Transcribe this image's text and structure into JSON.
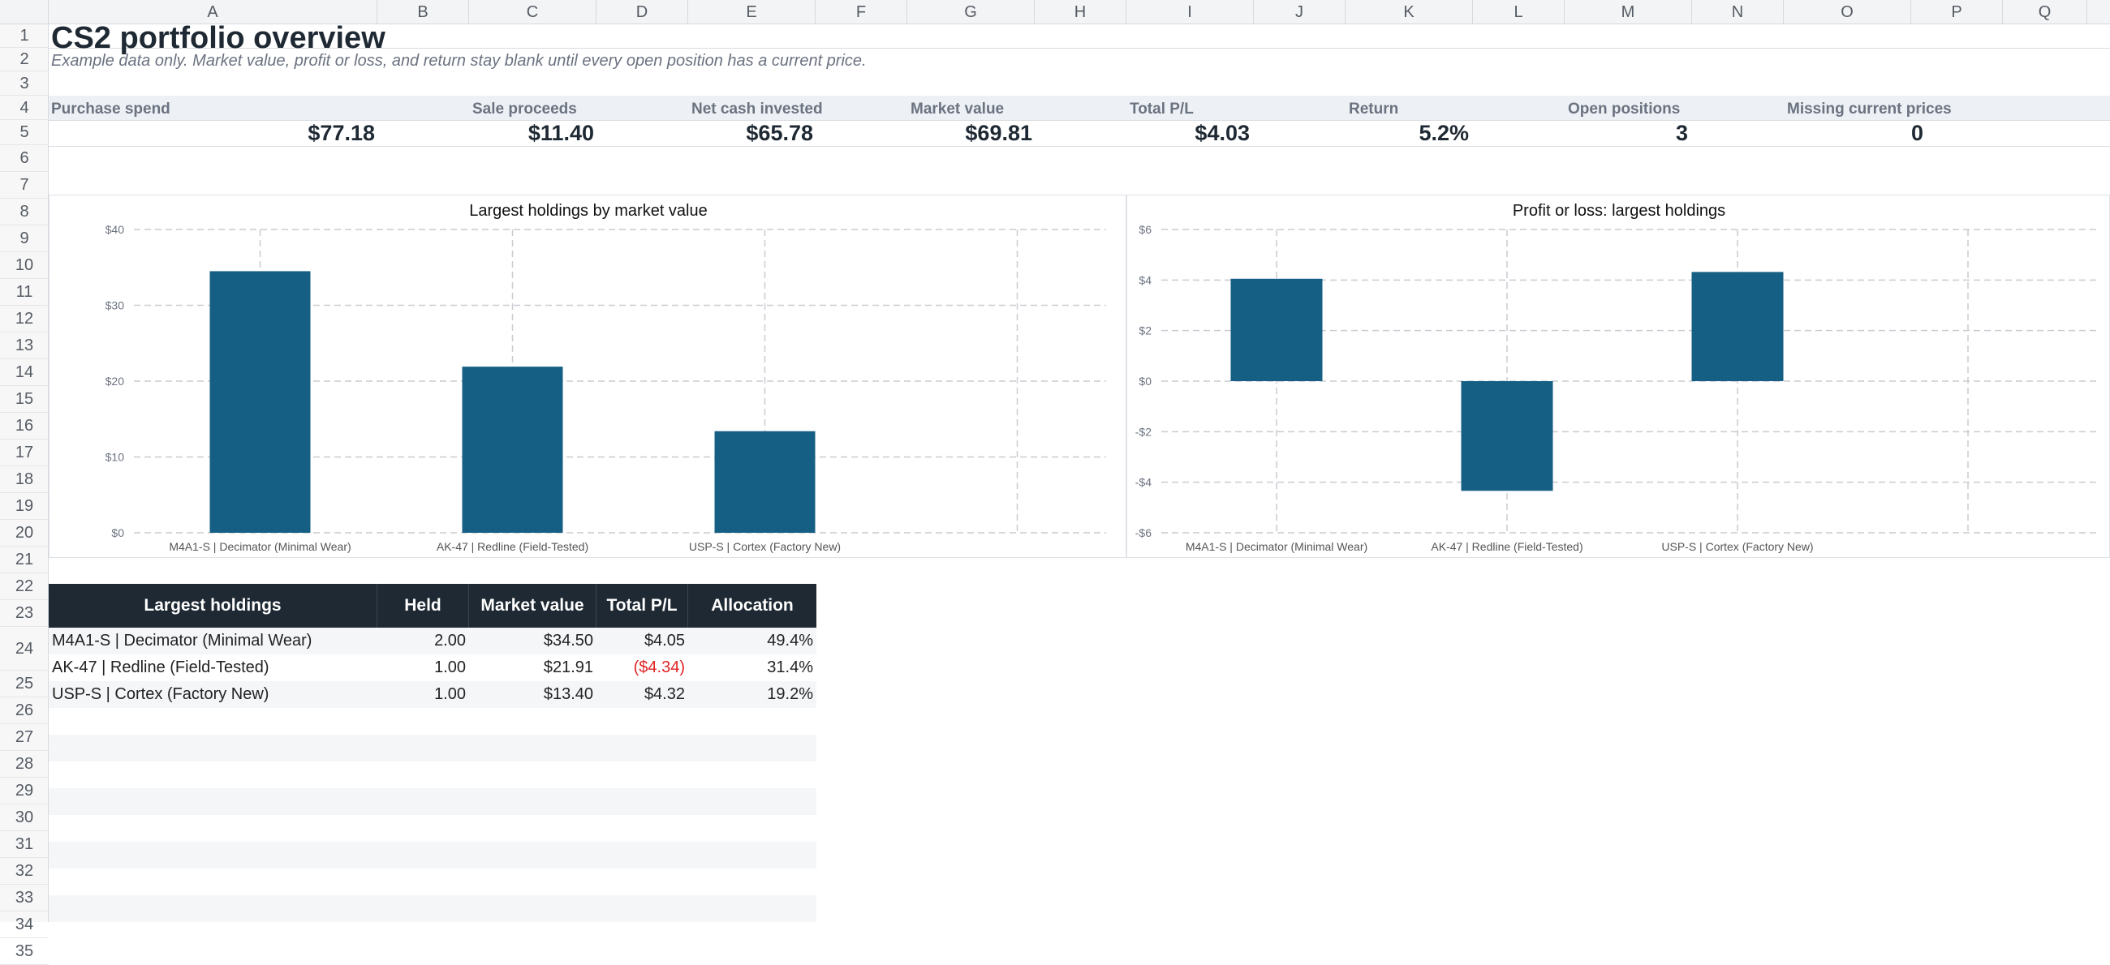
{
  "columns": [
    "A",
    "B",
    "C",
    "D",
    "E",
    "F",
    "G",
    "H",
    "I",
    "J",
    "K",
    "L",
    "M",
    "N",
    "O",
    "P",
    "Q"
  ],
  "rows": [
    "1",
    "2",
    "3",
    "4",
    "5",
    "6",
    "7",
    "8",
    "9",
    "10",
    "11",
    "12",
    "13",
    "14",
    "15",
    "16",
    "17",
    "18",
    "19",
    "20",
    "21",
    "22",
    "23",
    "24",
    "25",
    "26",
    "27",
    "28",
    "29",
    "30",
    "31",
    "32",
    "33",
    "34",
    "35"
  ],
  "sheet": {
    "title": "CS2 portfolio overview",
    "subtitle": "Example data only. Market value, profit or loss, and return stay blank until every open position has a current price."
  },
  "kpis": [
    {
      "label": "Purchase spend",
      "value": "$77.18"
    },
    {
      "label": "Sale proceeds",
      "value": "$11.40"
    },
    {
      "label": "Net cash invested",
      "value": "$65.78"
    },
    {
      "label": "Market value",
      "value": "$69.81"
    },
    {
      "label": "Total P/L",
      "value": "$4.03"
    },
    {
      "label": "Return",
      "value": "5.2%"
    },
    {
      "label": "Open positions",
      "value": "3"
    },
    {
      "label": "Missing current prices",
      "value": "0"
    }
  ],
  "chart_data": [
    {
      "type": "bar",
      "title": "Largest holdings by market value",
      "categories": [
        "M4A1-S | Decimator (Minimal Wear)",
        "AK-47 | Redline (Field-Tested)",
        "USP-S | Cortex (Factory New)"
      ],
      "values": [
        34.5,
        21.91,
        13.4
      ],
      "ylim": [
        0,
        40
      ],
      "yticks": [
        "$0",
        "$10",
        "$20",
        "$30",
        "$40"
      ],
      "grid": true,
      "color": "#165f84"
    },
    {
      "type": "bar",
      "title": "Profit or loss: largest holdings",
      "categories": [
        "M4A1-S | Decimator (Minimal Wear)",
        "AK-47 | Redline (Field-Tested)",
        "USP-S | Cortex (Factory New)"
      ],
      "values": [
        4.05,
        -4.34,
        4.32
      ],
      "ylim": [
        -6,
        6
      ],
      "yticks": [
        "-$6",
        "-$4",
        "-$2",
        "$0",
        "$2",
        "$4",
        "$6"
      ],
      "grid": true,
      "color": "#165f84"
    }
  ],
  "holdings_table": {
    "headers": [
      "Largest holdings",
      "Held",
      "Market value",
      "Total P/L",
      "Allocation"
    ],
    "rows": [
      [
        "M4A1-S | Decimator (Minimal Wear)",
        "2.00",
        "$34.50",
        "$4.05",
        "49.4%"
      ],
      [
        "AK-47 | Redline (Field-Tested)",
        "1.00",
        "$21.91",
        "($4.34)",
        "31.4%"
      ],
      [
        "USP-S | Cortex (Factory New)",
        "1.00",
        "$13.40",
        "$4.32",
        "19.2%"
      ]
    ]
  },
  "colors": {
    "header_bg": "#1f2933",
    "bar": "#165f84",
    "negative_text": "#e02424",
    "kpi_band": "#edf1f5"
  }
}
